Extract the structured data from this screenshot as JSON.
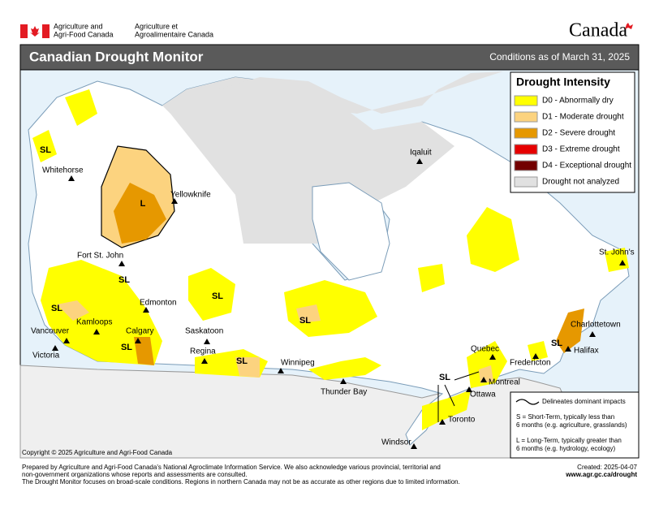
{
  "header": {
    "department_en": [
      "Agriculture and",
      "Agri-Food Canada"
    ],
    "department_fr": [
      "Agriculture et",
      "Agroalimentaire Canada"
    ],
    "wordmark": "Canada"
  },
  "title": "Canadian Drought Monitor",
  "conditions": "Conditions as of March 31, 2025",
  "legend": {
    "title": "Drought Intensity",
    "items": [
      {
        "label": "D0 - Abnormally dry",
        "color": "#ffff00"
      },
      {
        "label": "D1 - Moderate drought",
        "color": "#fcd37f"
      },
      {
        "label": "D2 - Severe drought",
        "color": "#e69800"
      },
      {
        "label": "D3 - Extreme drought",
        "color": "#e60000"
      },
      {
        "label": "D4 - Exceptional drought",
        "color": "#730000"
      },
      {
        "label": "Drought not analyzed",
        "color": "#e1e1e1"
      }
    ]
  },
  "cities": [
    "Whitehorse",
    "Yellowknife",
    "Iqaluit",
    "Fort St. John",
    "Edmonton",
    "Kamloops",
    "Calgary",
    "Vancouver",
    "Victoria",
    "Saskatoon",
    "Regina",
    "Winnipeg",
    "Thunder Bay",
    "Quebec",
    "Fredericton",
    "Charlottetown",
    "Halifax",
    "St. John's",
    "Montreal",
    "Ottawa",
    "Toronto",
    "Windsor"
  ],
  "impact_labels": [
    "SL",
    "SL",
    "SL",
    "SL",
    "SL",
    "SL",
    "SL",
    "SL",
    "SL",
    "L"
  ],
  "impacts_legend": {
    "line": "Delineates dominant impacts",
    "short": [
      "S = Short-Term, typically less than",
      "6 months (e.g. agriculture, grasslands)"
    ],
    "long": [
      "L = Long-Term, typically greater  than",
      "6 months (e.g. hydrology, ecology)"
    ]
  },
  "copyright": "Copyright © 2025 Agriculture and Agri-Food Canada",
  "footer": {
    "lines": [
      "Prepared by Agriculture and Agri-Food Canada's National Agroclimate Information Service.  We also acknowledge various provincial, territorial and",
      "non-government organizations whose reports and assessments are consulted.",
      "The Drought Monitor focuses on broad-scale conditions.  Regions in northern Canada may not be as accurate as other regions due to limited information."
    ],
    "created": "Created: 2025-04-07",
    "url": "www.agr.gc.ca/drought"
  }
}
